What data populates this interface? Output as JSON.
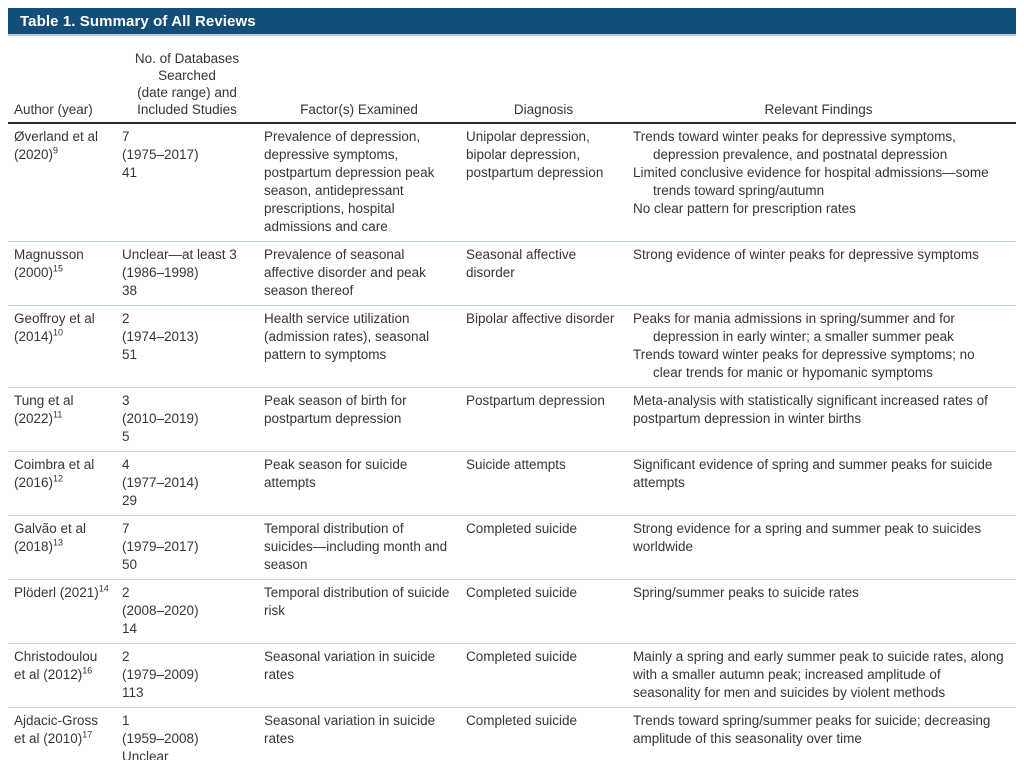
{
  "table": {
    "title": "Table 1. Summary of All Reviews",
    "colors": {
      "title_bar_bg": "#134e78",
      "title_text": "#ffffff",
      "header_rule": "#2b2b2b",
      "row_separator": "#c4d4e2",
      "bottom_rule": "#5b84a9",
      "body_text": "#363636"
    },
    "columns": {
      "author": "Author (year)",
      "databases": "No. of Databases\nSearched\n(date range) and\nIncluded Studies",
      "factors": "Factor(s) Examined",
      "diagnosis": "Diagnosis",
      "findings": "Relevant Findings"
    },
    "rows": [
      {
        "author": "Øverland et al (2020)",
        "ref": "9",
        "databases": [
          "7",
          "(1975–2017)",
          "41"
        ],
        "factors": "Prevalence of depression, depressive symptoms, postpartum depression peak season, antidepressant prescriptions, hospital admissions and care",
        "diagnosis": "Unipolar depression, bipolar depression, postpartum depression",
        "findings": [
          "Trends toward winter peaks for depressive symptoms, depression prevalence, and postnatal depression",
          "Limited conclusive evidence for hospital admissions—some trends toward spring/autumn",
          "No clear pattern for prescription rates"
        ],
        "findings_hanging_indent": true
      },
      {
        "author": "Magnusson (2000)",
        "ref": "15",
        "databases": [
          "Unclear—at least 3",
          "(1986–1998)",
          "38"
        ],
        "factors": "Prevalence of seasonal affective disorder and peak season thereof",
        "diagnosis": "Seasonal affective disorder",
        "findings": [
          "Strong evidence of winter peaks for depressive symptoms"
        ],
        "findings_hanging_indent": false
      },
      {
        "author": "Geoffroy et al (2014)",
        "ref": "10",
        "databases": [
          "2",
          "(1974–2013)",
          "51"
        ],
        "factors": "Health service utilization (admission rates), seasonal pattern to symptoms",
        "diagnosis": "Bipolar affective disorder",
        "findings": [
          "Peaks for mania admissions in spring/summer and for depression in early winter; a smaller summer peak",
          "Trends toward winter peaks for depressive symptoms; no clear trends for manic or hypomanic symptoms"
        ],
        "findings_hanging_indent": true
      },
      {
        "author": "Tung et al (2022)",
        "ref": "11",
        "databases": [
          "3",
          "(2010–2019)",
          "5"
        ],
        "factors": "Peak season of birth for postpartum depression",
        "diagnosis": "Postpartum depression",
        "findings": [
          "Meta-analysis with statistically significant increased rates of postpartum depression in winter births"
        ],
        "findings_hanging_indent": false
      },
      {
        "author": "Coimbra et al (2016)",
        "ref": "12",
        "databases": [
          "4",
          "(1977–2014)",
          "29"
        ],
        "factors": "Peak season for suicide attempts",
        "diagnosis": "Suicide attempts",
        "findings": [
          "Significant evidence of spring and summer peaks for suicide attempts"
        ],
        "findings_hanging_indent": false
      },
      {
        "author": "Galvão et al (2018)",
        "ref": "13",
        "databases": [
          "7",
          "(1979–2017)",
          "50"
        ],
        "factors": "Temporal distribution of suicides—including month and season",
        "diagnosis": "Completed suicide",
        "findings": [
          "Strong evidence for a spring and summer peak to suicides worldwide"
        ],
        "findings_hanging_indent": false
      },
      {
        "author": "Plöderl (2021)",
        "ref": "14",
        "databases": [
          "2",
          "(2008–2020)",
          "14"
        ],
        "factors": "Temporal distribution of suicide risk",
        "diagnosis": "Completed suicide",
        "findings": [
          "Spring/summer peaks to suicide rates"
        ],
        "findings_hanging_indent": false
      },
      {
        "author": "Christodoulou et al (2012)",
        "ref": "16",
        "databases": [
          "2",
          "(1979–2009)",
          "113"
        ],
        "factors": "Seasonal variation in suicide rates",
        "diagnosis": "Completed suicide",
        "findings": [
          "Mainly a spring and early summer peak to suicide rates, along with a smaller autumn peak; increased amplitude of seasonality for men and suicides by violent methods"
        ],
        "findings_hanging_indent": false
      },
      {
        "author": "Ajdacic-Gross et al (2010)",
        "ref": "17",
        "databases": [
          "1",
          "(1959–2008)",
          "Unclear"
        ],
        "factors": "Seasonal variation in suicide rates",
        "diagnosis": "Completed suicide",
        "findings": [
          "Trends toward spring/summer peaks for suicide; decreasing amplitude of this seasonality over time"
        ],
        "findings_hanging_indent": false
      }
    ]
  }
}
